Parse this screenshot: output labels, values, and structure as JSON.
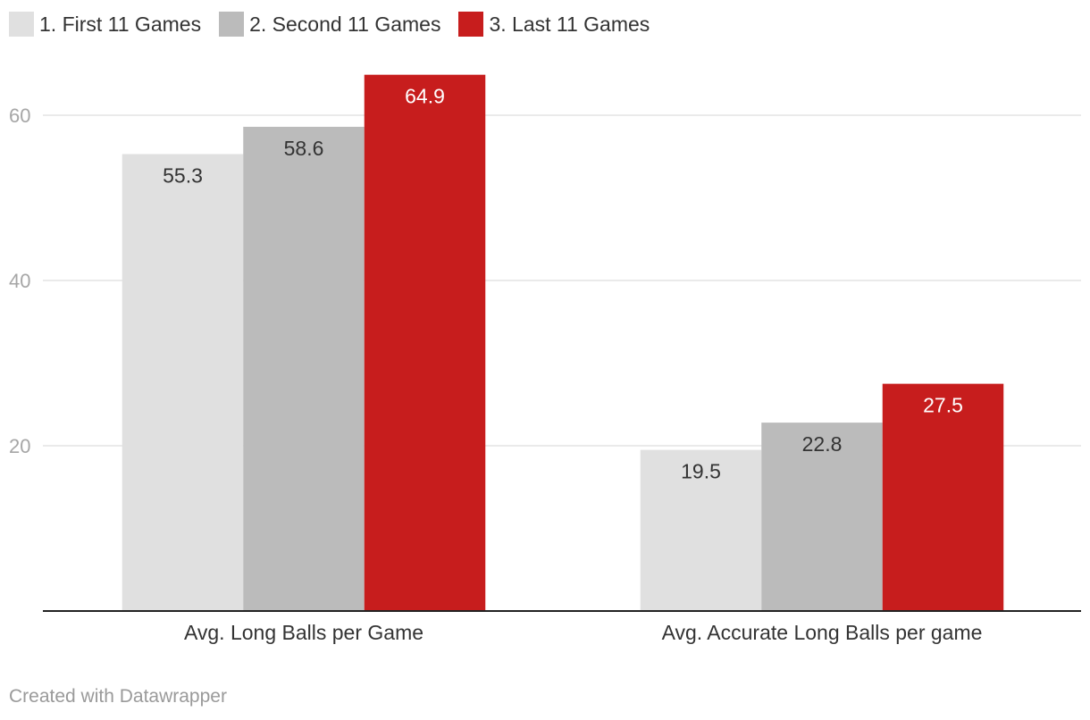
{
  "legend": [
    {
      "label": "1. First 11 Games",
      "color": "#e0e0e0"
    },
    {
      "label": "2. Second 11 Games",
      "color": "#bbbbbb"
    },
    {
      "label": "3. Last 11 Games",
      "color": "#c71d1d"
    }
  ],
  "footer": {
    "credit": "Created with Datawrapper"
  },
  "chart_data": {
    "type": "bar",
    "title": "",
    "xlabel": "",
    "ylabel": "",
    "categories": [
      "Avg. Long Balls per Game",
      "Avg. Accurate Long Balls per game"
    ],
    "series": [
      {
        "name": "1. First 11 Games",
        "values": [
          55.3,
          19.5
        ],
        "color": "#e0e0e0",
        "label_color": "#333333"
      },
      {
        "name": "2. Second 11 Games",
        "values": [
          58.6,
          22.8
        ],
        "color": "#bbbbbb",
        "label_color": "#333333"
      },
      {
        "name": "3. Last 11 Games",
        "values": [
          64.9,
          27.5
        ],
        "color": "#c71d1d",
        "label_color": "#ffffff"
      }
    ],
    "ylim": [
      0,
      65
    ],
    "yticks": [
      20,
      40,
      60
    ],
    "grid": true,
    "legend_position": "top-left",
    "data_labels": true
  }
}
